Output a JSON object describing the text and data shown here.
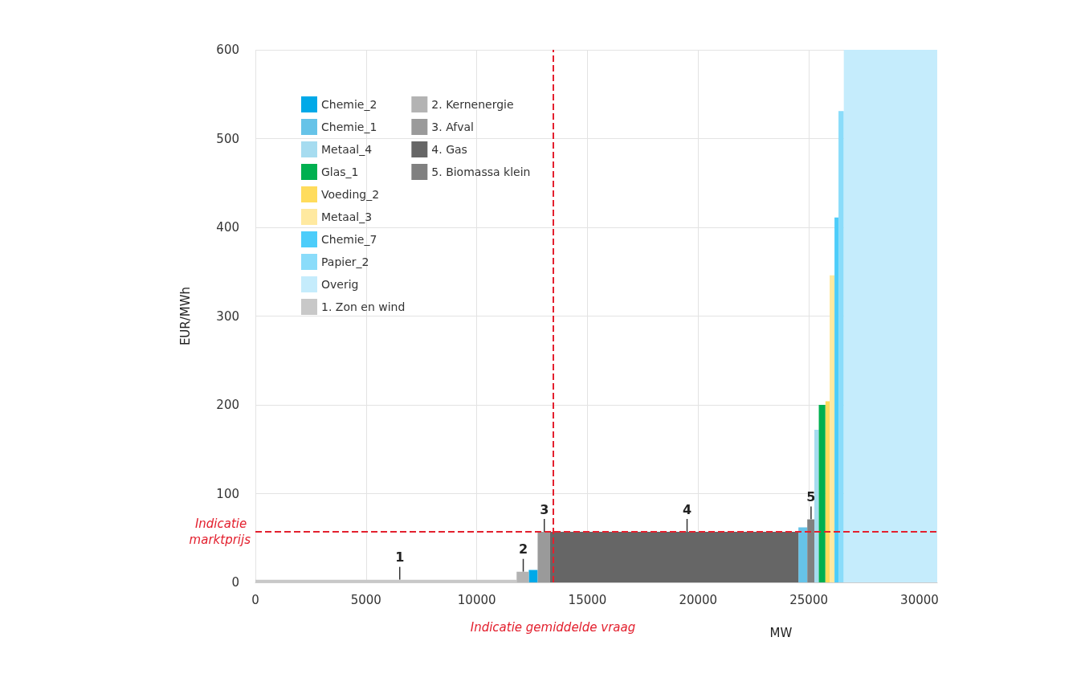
{
  "chart_data": {
    "type": "area",
    "xlabel": "MW",
    "ylabel": "EUR/MWh",
    "xlim": [
      0,
      30800
    ],
    "xticks": [
      0,
      5000,
      10000,
      15000,
      20000,
      25000,
      30000
    ],
    "ylim": [
      0,
      600
    ],
    "yticks": [
      0,
      100,
      200,
      300,
      400,
      500,
      600
    ],
    "grid": true,
    "legend": "top left",
    "marker": "none",
    "series": [
      {
        "name": "Chemie_2",
        "color": "#00a9e8",
        "x": [
          12350,
          12750
        ],
        "values": [
          14,
          14
        ]
      },
      {
        "name": "Chemie_1",
        "color": "#66c3e8",
        "x": [
          24530,
          24930
        ],
        "values": [
          62,
          62
        ]
      },
      {
        "name": "Metaal_4",
        "color": "#a6dcf0",
        "x": [
          25250,
          25450
        ],
        "values": [
          172,
          172
        ]
      },
      {
        "name": "Glas_1",
        "color": "#00b050",
        "x": [
          25450,
          25750
        ],
        "values": [
          200,
          200
        ]
      },
      {
        "name": "Voeding_2",
        "color": "#ffdc5c",
        "x": [
          25750,
          25940
        ],
        "values": [
          204,
          204
        ]
      },
      {
        "name": "Metaal_3",
        "color": "#ffe9a0",
        "x": [
          25940,
          26160
        ],
        "values": [
          346,
          346
        ]
      },
      {
        "name": "Chemie_7",
        "color": "#4dcdfa",
        "x": [
          26160,
          26340
        ],
        "values": [
          411,
          411
        ]
      },
      {
        "name": "Papier_2",
        "color": "#8adcfa",
        "x": [
          26340,
          26580
        ],
        "values": [
          531,
          531
        ]
      },
      {
        "name": "Overig",
        "color": "#c5ecfc",
        "x": [
          26580,
          30800
        ],
        "values": [
          600,
          600
        ]
      },
      {
        "name": "1. Zon en wind",
        "color": "#c8c8c8",
        "x": [
          0,
          11800
        ],
        "values": [
          3,
          3
        ]
      },
      {
        "name": "2. Kernenergie",
        "color": "#b3b3b3",
        "x": [
          11800,
          12350
        ],
        "values": [
          12,
          12
        ]
      },
      {
        "name": "3. Afval",
        "color": "#9a9a9a",
        "x": [
          12750,
          13300
        ],
        "values": [
          57,
          57
        ]
      },
      {
        "name": "4. Gas",
        "color": "#666666",
        "x": [
          13300,
          24530
        ],
        "values": [
          57,
          57
        ]
      },
      {
        "name": "5. Biomassa klein",
        "color": "#808080",
        "x": [
          24930,
          25250
        ],
        "values": [
          71,
          71
        ]
      }
    ],
    "ref_lines": [
      {
        "axis": "y",
        "value": 57,
        "label": "Indicatie marktprijs",
        "color": "#e3202e",
        "line_style": "dashed"
      },
      {
        "axis": "x",
        "value": 13440,
        "label": "Indicatie gemiddelde vraag",
        "color": "#e3202e",
        "line_style": "dashed"
      }
    ],
    "annotations": [
      {
        "text": "1",
        "x": 6520,
        "y": 3
      },
      {
        "text": "2",
        "x": 12100,
        "y": 12
      },
      {
        "text": "3",
        "x": 13050,
        "y": 57
      },
      {
        "text": "4",
        "x": 19500,
        "y": 57
      },
      {
        "text": "5",
        "x": 25100,
        "y": 71
      }
    ]
  }
}
